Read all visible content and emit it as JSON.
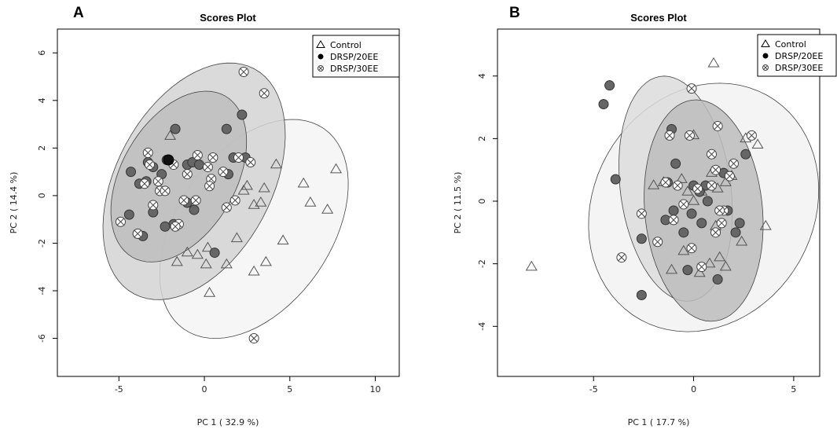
{
  "chart_data": [
    {
      "type": "scatter",
      "panel": "A",
      "title": "Scores Plot",
      "xlabel": "PC 1 ( 32.9 %)",
      "ylabel": "PC 2 ( 14.4 %)",
      "xlim": [
        -8.6,
        11.4
      ],
      "ylim": [
        -7.6,
        7.0
      ],
      "xticks": [
        -5,
        0,
        5,
        10
      ],
      "yticks": [
        -6,
        -4,
        -2,
        0,
        2,
        4,
        6
      ],
      "legend_position": "top-right",
      "legend": [
        "Control",
        "DRSP/20EE",
        "DRSP/30EE"
      ],
      "ellipses": [
        {
          "group": "Control",
          "cx": 2.9,
          "cy": -1.4,
          "rx": 6.1,
          "ry": 3.8,
          "angle": 33,
          "fill": "#f5f5f5"
        },
        {
          "group": "DRSP/30EE",
          "cx": -0.6,
          "cy": 0.6,
          "rx": 6.1,
          "ry": 4.0,
          "angle": 40,
          "fill": "#d4d4d4"
        },
        {
          "group": "DRSP/20EE",
          "cx": -1.5,
          "cy": 0.8,
          "rx": 4.5,
          "ry": 2.9,
          "angle": 38,
          "fill": "#bdbdbd"
        }
      ],
      "series": [
        {
          "name": "Control",
          "marker": "triangle",
          "x": [
            -2.0,
            2.3,
            4.2,
            5.8,
            7.7,
            3.5,
            2.5,
            6.2,
            7.2,
            3.3,
            2.9,
            1.9,
            4.6,
            0.2,
            -1.6,
            -1.0,
            -0.4,
            0.1,
            1.3,
            3.6,
            2.9,
            0.3
          ],
          "y": [
            2.5,
            0.2,
            1.3,
            0.5,
            1.1,
            0.3,
            0.4,
            -0.3,
            -0.6,
            -0.3,
            -0.4,
            -1.8,
            -1.9,
            -2.2,
            -2.8,
            -2.4,
            -2.5,
            -2.9,
            -2.9,
            -2.8,
            -3.2,
            -4.1
          ]
        },
        {
          "name": "DRSP/20EE",
          "marker": "circle",
          "x": [
            -1.7,
            -2.2,
            -3.3,
            -3.0,
            -2.5,
            -4.3,
            -3.8,
            -3.4,
            -1.0,
            -0.7,
            -0.3,
            1.3,
            2.2,
            2.4,
            1.7,
            1.4,
            -0.6,
            -1.0,
            -1.8,
            -2.3,
            -3.0,
            -4.4,
            -3.9,
            -3.6,
            0.6
          ],
          "y": [
            2.8,
            1.5,
            1.4,
            1.2,
            0.9,
            1.0,
            0.5,
            0.6,
            1.3,
            1.4,
            1.3,
            2.8,
            3.4,
            1.6,
            1.6,
            0.9,
            -0.6,
            -0.3,
            -1.2,
            -1.3,
            -0.7,
            -0.8,
            -1.6,
            -1.7,
            -2.4
          ]
        },
        {
          "name": "DRSP/30EE",
          "marker": "crossed-circle",
          "x": [
            2.3,
            3.5,
            -3.3,
            -3.2,
            -2.7,
            -3.5,
            -1.8,
            -0.4,
            0.5,
            0.2,
            0.4,
            2.7,
            2.0,
            1.1,
            0.3,
            -0.5,
            -1.0,
            -2.6,
            -2.3,
            -3.0,
            -1.5,
            -1.7,
            -4.9,
            -3.9,
            -1.2,
            1.3,
            1.8,
            2.9
          ],
          "y": [
            5.2,
            4.3,
            1.8,
            1.3,
            0.6,
            0.5,
            1.3,
            1.7,
            1.6,
            1.2,
            0.7,
            1.4,
            1.6,
            1.0,
            0.4,
            -0.2,
            0.9,
            0.2,
            0.2,
            -0.4,
            -1.2,
            -1.3,
            -1.1,
            -1.6,
            -0.2,
            -0.5,
            -0.2,
            -6.0
          ]
        }
      ]
    },
    {
      "type": "scatter",
      "panel": "B",
      "title": "Scores Plot",
      "xlabel": "PC 1 ( 17.7 %)",
      "ylabel": "PC 2 ( 11.5 %)",
      "xlim": [
        -9.8,
        6.3
      ],
      "ylim": [
        -5.6,
        5.5
      ],
      "xticks": [
        -5,
        0,
        5
      ],
      "yticks": [
        -4,
        -2,
        0,
        2,
        4
      ],
      "legend_position": "top-right",
      "legend": [
        "Control",
        "DRSP/20EE",
        "DRSP/30EE"
      ],
      "ellipses": [
        {
          "group": "Control",
          "cx": 0.5,
          "cy": -0.2,
          "rx": 5.8,
          "ry": 3.9,
          "angle": 10,
          "fill": "#f2f2f2"
        },
        {
          "group": "DRSP/20EE",
          "cx": -0.9,
          "cy": 0.4,
          "rx": 3.7,
          "ry": 2.7,
          "angle": -70,
          "fill": "#dcdcdc"
        },
        {
          "group": "DRSP/30EE",
          "cx": 0.5,
          "cy": -0.3,
          "rx": 3.6,
          "ry": 2.9,
          "angle": -72,
          "fill": "#bcbcbc"
        }
      ],
      "series": [
        {
          "name": "Control",
          "marker": "triangle",
          "x": [
            1.0,
            0.0,
            -2.0,
            -0.6,
            -0.3,
            0.9,
            1.2,
            1.6,
            3.6,
            2.4,
            1.3,
            0.8,
            1.6,
            -1.1,
            -0.5,
            0.3,
            -8.1,
            1.1,
            0.4,
            1.9,
            2.6,
            3.2,
            -1.5,
            0.0
          ],
          "y": [
            4.4,
            2.1,
            0.5,
            0.7,
            0.3,
            0.9,
            0.4,
            0.6,
            -0.8,
            -1.3,
            -1.8,
            -2.0,
            -2.1,
            -2.2,
            -1.6,
            -2.3,
            -2.1,
            -0.8,
            0.3,
            0.8,
            2.0,
            1.8,
            0.6,
            0.0
          ]
        },
        {
          "name": "DRSP/20EE",
          "marker": "circle",
          "x": [
            -4.2,
            -4.5,
            -3.9,
            -1.1,
            -0.9,
            -1.3,
            -1.4,
            0.0,
            0.6,
            0.3,
            -0.1,
            1.5,
            1.7,
            2.3,
            2.6,
            -0.5,
            -0.3,
            -1.0,
            -2.6,
            -2.6,
            0.4,
            1.2,
            2.1,
            0.7
          ],
          "y": [
            3.7,
            3.1,
            0.7,
            2.3,
            1.2,
            0.6,
            -0.6,
            0.5,
            0.5,
            0.3,
            -0.4,
            0.9,
            -0.3,
            -0.7,
            1.5,
            -1.0,
            -2.2,
            -0.3,
            -1.2,
            -3.0,
            -0.7,
            -2.5,
            -1.0,
            0.0
          ]
        },
        {
          "name": "DRSP/30EE",
          "marker": "crossed-circle",
          "x": [
            -0.1,
            1.2,
            -1.2,
            -0.2,
            0.9,
            1.1,
            2.0,
            2.9,
            -1.4,
            -0.8,
            1.8,
            1.5,
            1.3,
            -2.6,
            -1.8,
            -3.6,
            -0.1,
            0.4,
            1.4,
            1.1,
            -1.0,
            -0.5,
            0.2,
            0.9
          ],
          "y": [
            3.6,
            2.4,
            2.1,
            2.1,
            1.5,
            1.0,
            1.2,
            2.1,
            0.6,
            0.5,
            0.8,
            -0.3,
            -0.3,
            -0.4,
            -1.3,
            -1.8,
            -1.5,
            -2.1,
            -0.7,
            -1.0,
            -0.6,
            -0.1,
            0.4,
            0.5
          ]
        }
      ]
    }
  ]
}
